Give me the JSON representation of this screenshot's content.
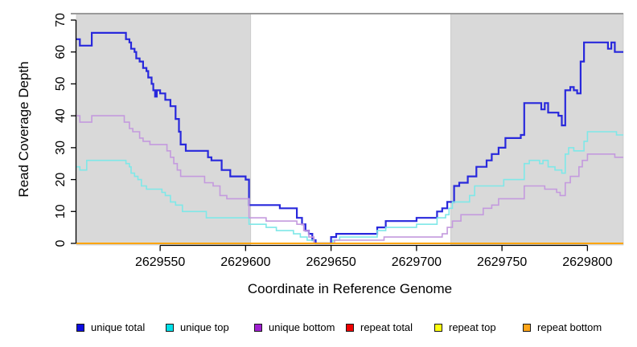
{
  "figure": {
    "background": "#ffffff"
  },
  "chart_data": {
    "type": "line",
    "step": "hv",
    "title": "",
    "xlabel": "Coordinate in Reference Genome",
    "ylabel": "Read Coverage Depth",
    "xlim": [
      2629501,
      2629821
    ],
    "ylim": [
      0,
      70
    ],
    "xticks": [
      2629550,
      2629600,
      2629650,
      2629700,
      2629750,
      2629800
    ],
    "yticks": [
      0,
      10,
      20,
      30,
      40,
      50,
      60,
      70
    ],
    "grid": false,
    "legend_position": "bottom",
    "plot_background": "#ffffff",
    "shaded_region_color": "#d9d9d9",
    "top_border_color": "#9a9a9a",
    "axis_color": "#000000",
    "shaded_regions": [
      {
        "x_start": 2629501,
        "x_end": 2629603
      },
      {
        "x_start": 2629720,
        "x_end": 2629821
      }
    ],
    "series": [
      {
        "name": "unique total",
        "line_color": "#2828dc",
        "legend_color": "#0d0de0",
        "line_width": 2.2,
        "points": [
          [
            2629501,
            64
          ],
          [
            2629503,
            62
          ],
          [
            2629510,
            66
          ],
          [
            2629530,
            64
          ],
          [
            2629532,
            63
          ],
          [
            2629533,
            61
          ],
          [
            2629535,
            60
          ],
          [
            2629536,
            58
          ],
          [
            2629538,
            57
          ],
          [
            2629540,
            55
          ],
          [
            2629542,
            54
          ],
          [
            2629543,
            52
          ],
          [
            2629545,
            50
          ],
          [
            2629546,
            48
          ],
          [
            2629547,
            46
          ],
          [
            2629548,
            48
          ],
          [
            2629550,
            47
          ],
          [
            2629553,
            45
          ],
          [
            2629556,
            43
          ],
          [
            2629559,
            39
          ],
          [
            2629561,
            35
          ],
          [
            2629562,
            31
          ],
          [
            2629565,
            29
          ],
          [
            2629578,
            27
          ],
          [
            2629580,
            26
          ],
          [
            2629586,
            23
          ],
          [
            2629591,
            21
          ],
          [
            2629600,
            20
          ],
          [
            2629602,
            12
          ],
          [
            2629620,
            11
          ],
          [
            2629630,
            8
          ],
          [
            2629633,
            6
          ],
          [
            2629635,
            4
          ],
          [
            2629637,
            3
          ],
          [
            2629639,
            1
          ],
          [
            2629641,
            0
          ],
          [
            2629650,
            2
          ],
          [
            2629653,
            3
          ],
          [
            2629677,
            5
          ],
          [
            2629682,
            7
          ],
          [
            2629700,
            8
          ],
          [
            2629712,
            10
          ],
          [
            2629715,
            11
          ],
          [
            2629718,
            13
          ],
          [
            2629722,
            18
          ],
          [
            2629725,
            19
          ],
          [
            2629730,
            21
          ],
          [
            2629735,
            24
          ],
          [
            2629741,
            26
          ],
          [
            2629744,
            28
          ],
          [
            2629748,
            30
          ],
          [
            2629752,
            33
          ],
          [
            2629761,
            34
          ],
          [
            2629763,
            44
          ],
          [
            2629773,
            42
          ],
          [
            2629775,
            44
          ],
          [
            2629777,
            41
          ],
          [
            2629783,
            40
          ],
          [
            2629785,
            37
          ],
          [
            2629787,
            48
          ],
          [
            2629790,
            49
          ],
          [
            2629792,
            48
          ],
          [
            2629794,
            47
          ],
          [
            2629796,
            57
          ],
          [
            2629798,
            63
          ],
          [
            2629812,
            61
          ],
          [
            2629814,
            63
          ],
          [
            2629816,
            60
          ]
        ]
      },
      {
        "name": "unique top",
        "line_color": "#7fe8e8",
        "legend_color": "#00e0e8",
        "line_width": 1.6,
        "points": [
          [
            2629501,
            24
          ],
          [
            2629503,
            23
          ],
          [
            2629507,
            26
          ],
          [
            2629530,
            25
          ],
          [
            2629532,
            24
          ],
          [
            2629533,
            22
          ],
          [
            2629535,
            21
          ],
          [
            2629537,
            20
          ],
          [
            2629539,
            18
          ],
          [
            2629542,
            17
          ],
          [
            2629551,
            16
          ],
          [
            2629553,
            15
          ],
          [
            2629556,
            13
          ],
          [
            2629559,
            12
          ],
          [
            2629563,
            10
          ],
          [
            2629577,
            8
          ],
          [
            2629602,
            6
          ],
          [
            2629612,
            5
          ],
          [
            2629618,
            4
          ],
          [
            2629628,
            3
          ],
          [
            2629632,
            2
          ],
          [
            2629636,
            1
          ],
          [
            2629640,
            0
          ],
          [
            2629651,
            1
          ],
          [
            2629655,
            2
          ],
          [
            2629677,
            4
          ],
          [
            2629682,
            5
          ],
          [
            2629700,
            6
          ],
          [
            2629712,
            8
          ],
          [
            2629717,
            9
          ],
          [
            2629719,
            11
          ],
          [
            2629721,
            13
          ],
          [
            2629731,
            15
          ],
          [
            2629734,
            18
          ],
          [
            2629751,
            20
          ],
          [
            2629763,
            25
          ],
          [
            2629766,
            26
          ],
          [
            2629772,
            25
          ],
          [
            2629774,
            26
          ],
          [
            2629777,
            24
          ],
          [
            2629781,
            23
          ],
          [
            2629785,
            22
          ],
          [
            2629787,
            28
          ],
          [
            2629789,
            30
          ],
          [
            2629792,
            29
          ],
          [
            2629798,
            32
          ],
          [
            2629800,
            35
          ],
          [
            2629817,
            34
          ]
        ]
      },
      {
        "name": "unique bottom",
        "line_color": "#c49ade",
        "legend_color": "#a020d0",
        "line_width": 1.6,
        "points": [
          [
            2629501,
            40
          ],
          [
            2629503,
            38
          ],
          [
            2629510,
            40
          ],
          [
            2629529,
            38
          ],
          [
            2629532,
            36
          ],
          [
            2629534,
            35
          ],
          [
            2629538,
            33
          ],
          [
            2629540,
            32
          ],
          [
            2629544,
            31
          ],
          [
            2629554,
            29
          ],
          [
            2629556,
            27
          ],
          [
            2629558,
            25
          ],
          [
            2629560,
            23
          ],
          [
            2629562,
            21
          ],
          [
            2629576,
            19
          ],
          [
            2629581,
            18
          ],
          [
            2629585,
            15
          ],
          [
            2629589,
            14
          ],
          [
            2629602,
            8
          ],
          [
            2629612,
            7
          ],
          [
            2629630,
            6
          ],
          [
            2629634,
            4
          ],
          [
            2629637,
            2
          ],
          [
            2629640,
            0
          ],
          [
            2629652,
            1
          ],
          [
            2629681,
            2
          ],
          [
            2629715,
            3
          ],
          [
            2629718,
            5
          ],
          [
            2629721,
            7
          ],
          [
            2629726,
            9
          ],
          [
            2629739,
            11
          ],
          [
            2629744,
            12
          ],
          [
            2629748,
            14
          ],
          [
            2629763,
            18
          ],
          [
            2629775,
            17
          ],
          [
            2629782,
            16
          ],
          [
            2629784,
            15
          ],
          [
            2629787,
            19
          ],
          [
            2629790,
            21
          ],
          [
            2629795,
            24
          ],
          [
            2629797,
            26
          ],
          [
            2629800,
            28
          ],
          [
            2629816,
            27
          ]
        ]
      },
      {
        "name": "repeat total",
        "line_color": "#e00000",
        "legend_color": "#ee0000",
        "line_width": 1.6,
        "points": [
          [
            2629501,
            0
          ]
        ]
      },
      {
        "name": "repeat top",
        "line_color": "#ffff00",
        "legend_color": "#ffff10",
        "line_width": 1.6,
        "points": [
          [
            2629501,
            0
          ]
        ]
      },
      {
        "name": "repeat bottom",
        "line_color": "#ffa500",
        "legend_color": "#ffa519",
        "line_width": 2,
        "points": [
          [
            2629501,
            0
          ]
        ]
      }
    ]
  }
}
